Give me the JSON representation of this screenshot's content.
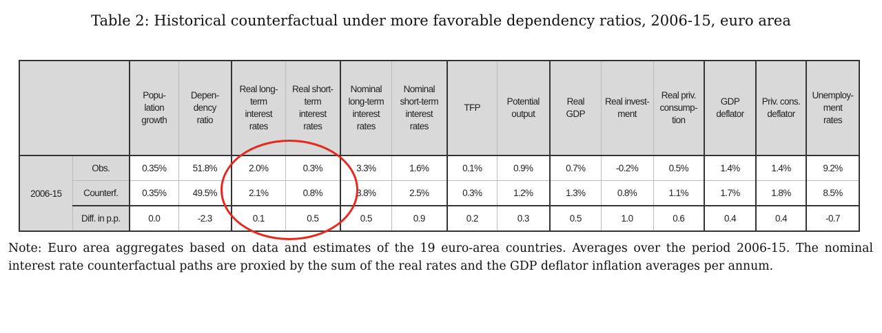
{
  "title": "Table 2: Historical counterfactual under more favorable dependency ratios, 2006-15, euro area",
  "table": {
    "headers": [
      "Popu-\nlation\ngrowth",
      "Depen-\ndency\nratio",
      "Real long-\nterm\ninterest\nrates",
      "Real short-\nterm\ninterest\nrates",
      "Nominal\nlong-term\ninterest\nrates",
      "Nominal\nshort-term\ninterest\nrates",
      "TFP",
      "Potential\noutput",
      "Real\nGDP",
      "Real invest-\nment",
      "Real priv.\nconsump-\ntion",
      "GDP\ndeflator",
      "Priv. cons.\ndeflator",
      "Unemploy-\nment\nrates"
    ],
    "period": "2006-15",
    "rows": [
      {
        "label": "Obs.",
        "values": [
          "0.35%",
          "51.8%",
          "2.0%",
          "0.3%",
          "3.3%",
          "1.6%",
          "0.1%",
          "0.9%",
          "0.7%",
          "-0.2%",
          "0.5%",
          "1.4%",
          "1.4%",
          "9.2%"
        ]
      },
      {
        "label": "Counterf.",
        "values": [
          "0.35%",
          "49.5%",
          "2.1%",
          "0.8%",
          "3.8%",
          "2.5%",
          "0.3%",
          "1.2%",
          "1.3%",
          "0.8%",
          "1.1%",
          "1.7%",
          "1.8%",
          "8.5%"
        ]
      },
      {
        "label": "Diff. in p.p.",
        "values": [
          "0.0",
          "-2.3",
          "0.1",
          "0.5",
          "0.5",
          "0.9",
          "0.2",
          "0.3",
          "0.5",
          "1.0",
          "0.6",
          "0.4",
          "0.4",
          "-0.7"
        ]
      }
    ]
  },
  "annotation_color": "#e8281c",
  "note": "Note: Euro area aggregates based on data and estimates of the 19 euro-area countries. Averages over the period 2006-15. The nominal interest rate counterfactual paths are proxied by the sum of the real rates and the GDP deflator inflation averages per annum."
}
